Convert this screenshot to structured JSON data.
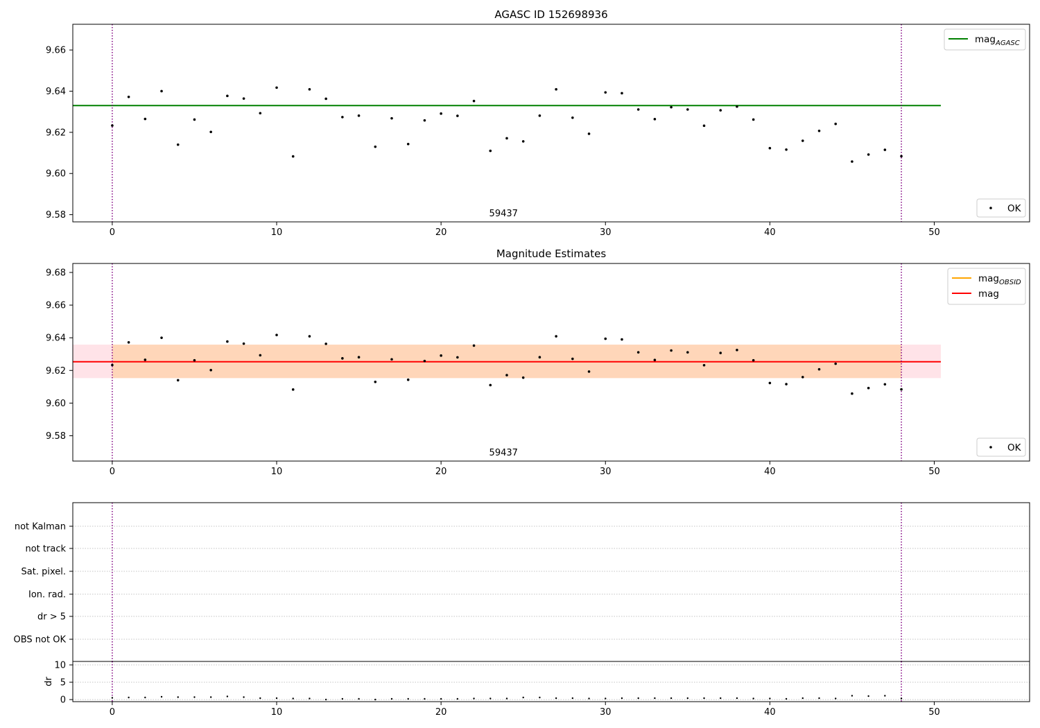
{
  "chart_data": [
    {
      "type": "scatter",
      "title": "AGASC ID 152698936",
      "xlim": [
        -2.4,
        55.8
      ],
      "ylim": [
        9.5765,
        9.6725
      ],
      "xticks": [
        0,
        10,
        20,
        30,
        40,
        50
      ],
      "yticks": [
        9.58,
        9.6,
        9.62,
        9.64,
        9.66
      ],
      "grid": false,
      "series": [
        {
          "name": "OK",
          "color": "#000000",
          "values": [
            9.6233,
            9.6372,
            9.6265,
            9.64,
            9.614,
            9.6262,
            9.6202,
            9.6377,
            9.6364,
            9.6293,
            9.6417,
            9.6083,
            9.6409,
            9.6363,
            9.6274,
            9.6281,
            9.613,
            9.6268,
            9.6143,
            9.6258,
            9.6291,
            9.628,
            9.6352,
            9.611,
            9.6171,
            9.6156,
            9.6281,
            9.6409,
            9.6271,
            9.6193,
            9.6394,
            9.639,
            9.6311,
            9.6264,
            9.6322,
            9.6311,
            9.6232,
            9.6307,
            9.6325,
            9.6262,
            9.6123,
            9.6116,
            9.6159,
            9.6207,
            9.6241,
            9.6058,
            9.6092,
            9.6115,
            9.6084
          ]
        }
      ],
      "lines": [
        {
          "name": "mag",
          "name_sub": "AGASC",
          "color": "#008000",
          "y": 9.633,
          "x_range": [
            -2.4,
            50.4
          ]
        }
      ],
      "vertical_markers": [
        0,
        48
      ],
      "annotation": {
        "text": "59437",
        "x": 23.8
      },
      "legend_upper": "top-right",
      "legend_lower": "bottom-right"
    },
    {
      "type": "scatter",
      "title": "Magnitude Estimates",
      "xlim": [
        -2.4,
        55.8
      ],
      "ylim": [
        9.5645,
        9.6855
      ],
      "xticks": [
        0,
        10,
        20,
        30,
        40,
        50
      ],
      "yticks": [
        9.58,
        9.6,
        9.62,
        9.64,
        9.66,
        9.68
      ],
      "grid": false,
      "series": [
        {
          "name": "OK",
          "color": "#000000",
          "values": [
            9.6233,
            9.6372,
            9.6265,
            9.64,
            9.614,
            9.6262,
            9.6202,
            9.6377,
            9.6364,
            9.6293,
            9.6417,
            9.6083,
            9.6409,
            9.6363,
            9.6274,
            9.6281,
            9.613,
            9.6268,
            9.6143,
            9.6258,
            9.6291,
            9.628,
            9.6352,
            9.611,
            9.6171,
            9.6156,
            9.6281,
            9.6409,
            9.6271,
            9.6193,
            9.6394,
            9.639,
            9.6311,
            9.6264,
            9.6322,
            9.6311,
            9.6232,
            9.6307,
            9.6325,
            9.6262,
            9.6123,
            9.6116,
            9.6159,
            9.6207,
            9.6241,
            9.6058,
            9.6092,
            9.6115,
            9.6084
          ]
        }
      ],
      "lines": [
        {
          "name": "mag",
          "name_sub": "OBSID",
          "color": "#ffa500",
          "y": 9.6253,
          "x_range": [
            -2.4,
            50.4
          ]
        },
        {
          "name": "mag",
          "name_sub": "",
          "color": "#ff0000",
          "y": 9.6253,
          "x_range": [
            -2.4,
            50.4
          ]
        }
      ],
      "bands": [
        {
          "color": "#ffc0cb",
          "opacity": 0.45,
          "y_range": [
            9.6153,
            9.6358
          ],
          "x_range": [
            -2.4,
            50.4
          ]
        },
        {
          "color": "#ffa500",
          "opacity": 0.2,
          "y_range": [
            9.6153,
            9.6358
          ],
          "x_range": [
            0,
            48
          ]
        }
      ],
      "vertical_markers": [
        0,
        48
      ],
      "annotation": {
        "text": "59437",
        "x": 23.8
      },
      "legend_upper": "top-right",
      "legend_lower": "bottom-right"
    },
    {
      "type": "scatter",
      "title": "",
      "xlim": [
        -2.4,
        55.8
      ],
      "flag_labels": [
        "not Kalman",
        "not track",
        "Sat. pixel.",
        "Ion. rad.",
        "dr > 5",
        "OBS not OK"
      ],
      "vertical_markers": [
        0,
        48
      ],
      "grid": true
    },
    {
      "type": "scatter",
      "title": "",
      "ylabel": "dr",
      "xlim": [
        -2.4,
        55.8
      ],
      "ylim": [
        -0.6,
        11.0
      ],
      "xticks": [
        0,
        10,
        20,
        30,
        40,
        50
      ],
      "yticks": [
        0,
        5,
        10
      ],
      "grid": true,
      "series": [
        {
          "name": "dr",
          "color": "#000000",
          "values": [
            0.5,
            0.6,
            0.6,
            0.8,
            0.7,
            0.7,
            0.7,
            0.9,
            0.7,
            0.4,
            0.4,
            0.3,
            0.3,
            0.0,
            0.2,
            0.2,
            0.0,
            0.2,
            0.2,
            0.2,
            0.2,
            0.2,
            0.3,
            0.3,
            0.3,
            0.6,
            0.6,
            0.4,
            0.4,
            0.3,
            0.3,
            0.4,
            0.4,
            0.4,
            0.4,
            0.4,
            0.4,
            0.4,
            0.4,
            0.3,
            0.3,
            0.2,
            0.4,
            0.4,
            0.3,
            1.1,
            1.0,
            1.1,
            0.3
          ]
        }
      ],
      "vertical_markers": [
        0,
        48
      ]
    }
  ]
}
